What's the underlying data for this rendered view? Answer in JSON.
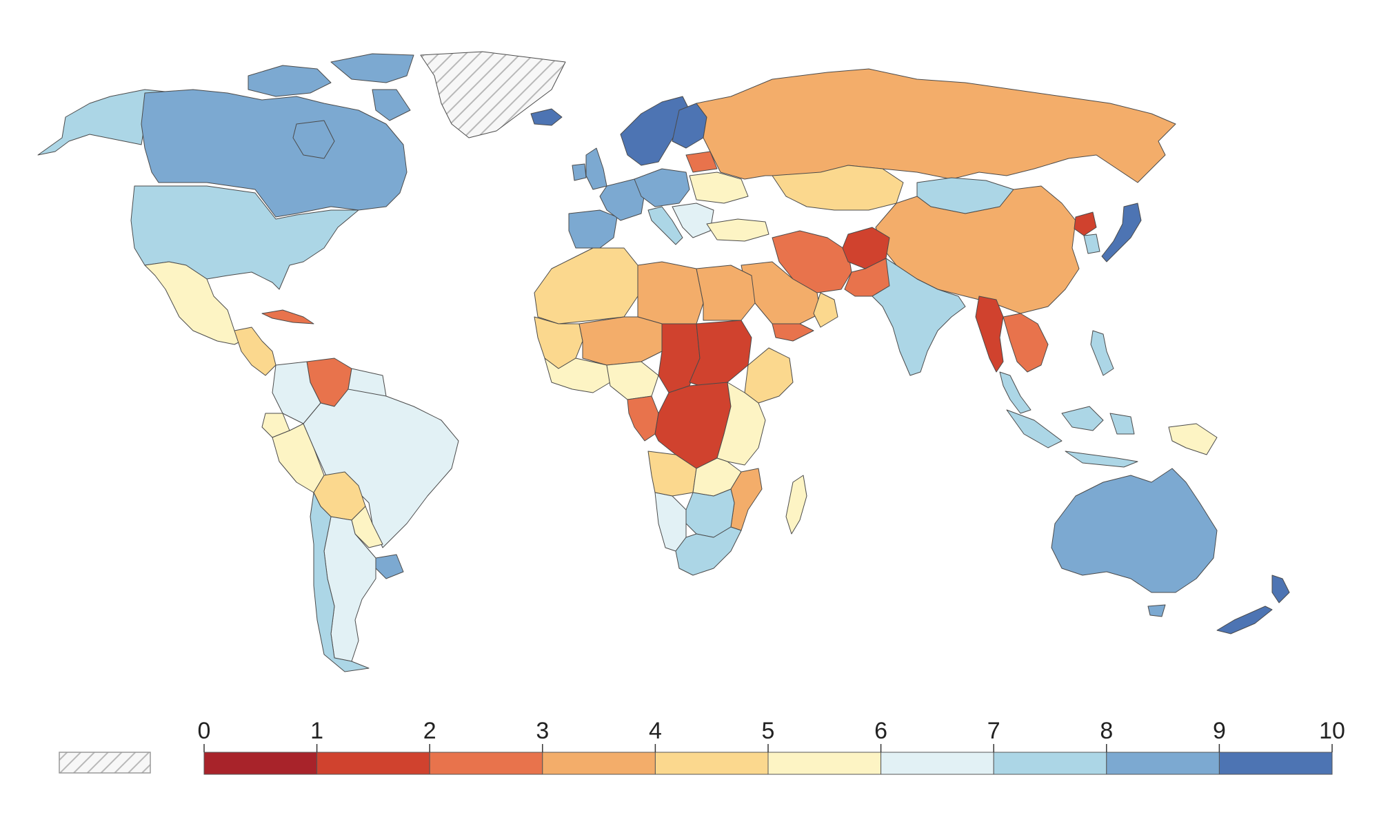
{
  "chart_data": {
    "type": "choropleth",
    "title": "",
    "legend": {
      "no_data_swatch": "hatched",
      "scale_min": 0,
      "scale_max": 10,
      "ticks": [
        "0",
        "1",
        "2",
        "3",
        "4",
        "5",
        "6",
        "7",
        "8",
        "9",
        "10"
      ],
      "bins": [
        {
          "range": [
            0,
            1
          ],
          "color": "#a8232a"
        },
        {
          "range": [
            1,
            2
          ],
          "color": "#d0422e"
        },
        {
          "range": [
            2,
            3
          ],
          "color": "#e8734c"
        },
        {
          "range": [
            3,
            4
          ],
          "color": "#f3ad6a"
        },
        {
          "range": [
            4,
            5
          ],
          "color": "#fbd88e"
        },
        {
          "range": [
            5,
            6
          ],
          "color": "#fdf4c4"
        },
        {
          "range": [
            6,
            7
          ],
          "color": "#e2f1f5"
        },
        {
          "range": [
            7,
            8
          ],
          "color": "#acd6e6"
        },
        {
          "range": [
            8,
            9
          ],
          "color": "#7ca9d1"
        },
        {
          "range": [
            9,
            10
          ],
          "color": "#4d74b3"
        }
      ]
    },
    "regions": [
      {
        "name": "Alaska",
        "bin": 7
      },
      {
        "name": "Canada",
        "bin": 8
      },
      {
        "name": "Canadian Arctic Islands",
        "bin": 8
      },
      {
        "name": "Greenland",
        "bin": "no-data"
      },
      {
        "name": "Iceland",
        "bin": 9
      },
      {
        "name": "United States",
        "bin": 7
      },
      {
        "name": "Mexico",
        "bin": 5
      },
      {
        "name": "Central America",
        "bin": 4
      },
      {
        "name": "Cuba",
        "bin": 2
      },
      {
        "name": "Venezuela",
        "bin": 2
      },
      {
        "name": "Guyana region",
        "bin": 6
      },
      {
        "name": "Colombia",
        "bin": 6
      },
      {
        "name": "Ecuador",
        "bin": 5
      },
      {
        "name": "Peru",
        "bin": 5
      },
      {
        "name": "Brazil",
        "bin": 6
      },
      {
        "name": "Bolivia",
        "bin": 4
      },
      {
        "name": "Paraguay",
        "bin": 5
      },
      {
        "name": "Uruguay",
        "bin": 8
      },
      {
        "name": "Argentina",
        "bin": 6
      },
      {
        "name": "Chile",
        "bin": 7
      },
      {
        "name": "Scandinavia",
        "bin": 9
      },
      {
        "name": "Finland",
        "bin": 9
      },
      {
        "name": "Great Britain",
        "bin": 8
      },
      {
        "name": "Ireland",
        "bin": 8
      },
      {
        "name": "Iberia",
        "bin": 8
      },
      {
        "name": "Western Europe",
        "bin": 8
      },
      {
        "name": "Central Europe",
        "bin": 8
      },
      {
        "name": "Italy",
        "bin": 7
      },
      {
        "name": "Balkans",
        "bin": 6
      },
      {
        "name": "Ukraine",
        "bin": 5
      },
      {
        "name": "Belarus",
        "bin": 2
      },
      {
        "name": "Turkey",
        "bin": 5
      },
      {
        "name": "Russia",
        "bin": 3
      },
      {
        "name": "Kazakhstan",
        "bin": 4
      },
      {
        "name": "Mongolia",
        "bin": 7
      },
      {
        "name": "China",
        "bin": 3
      },
      {
        "name": "North Korea",
        "bin": 1
      },
      {
        "name": "South Korea",
        "bin": 7
      },
      {
        "name": "Japan",
        "bin": 9
      },
      {
        "name": "Iran",
        "bin": 2
      },
      {
        "name": "Afghanistan",
        "bin": 1
      },
      {
        "name": "Pakistan",
        "bin": 2
      },
      {
        "name": "Saudi Arabia",
        "bin": 3
      },
      {
        "name": "Yemen",
        "bin": 2
      },
      {
        "name": "Oman",
        "bin": 4
      },
      {
        "name": "India",
        "bin": 7
      },
      {
        "name": "Myanmar",
        "bin": 1
      },
      {
        "name": "Indochina",
        "bin": 2
      },
      {
        "name": "Malay Peninsula",
        "bin": 7
      },
      {
        "name": "Indonesia",
        "bin": 7
      },
      {
        "name": "Philippines",
        "bin": 7
      },
      {
        "name": "Papua New Guinea",
        "bin": 5
      },
      {
        "name": "Australia",
        "bin": 8
      },
      {
        "name": "New Zealand",
        "bin": 9
      },
      {
        "name": "Maghreb",
        "bin": 4
      },
      {
        "name": "Libya",
        "bin": 3
      },
      {
        "name": "Egypt",
        "bin": 3
      },
      {
        "name": "Sahel West",
        "bin": 4
      },
      {
        "name": "Mali/Niger",
        "bin": 3
      },
      {
        "name": "Chad/CAR",
        "bin": 1
      },
      {
        "name": "Sudan",
        "bin": 1
      },
      {
        "name": "Ethiopia",
        "bin": 4
      },
      {
        "name": "West Africa coast",
        "bin": 5
      },
      {
        "name": "Nigeria",
        "bin": 5
      },
      {
        "name": "Cameroon/Gabon",
        "bin": 2
      },
      {
        "name": "DR Congo",
        "bin": 1
      },
      {
        "name": "East Africa",
        "bin": 5
      },
      {
        "name": "Angola",
        "bin": 4
      },
      {
        "name": "Zambia/Malawi",
        "bin": 5
      },
      {
        "name": "Mozambique",
        "bin": 3
      },
      {
        "name": "Namibia",
        "bin": 6
      },
      {
        "name": "Botswana/Zimbabwe",
        "bin": 7
      },
      {
        "name": "South Africa",
        "bin": 7
      },
      {
        "name": "Madagascar",
        "bin": 5
      }
    ]
  }
}
